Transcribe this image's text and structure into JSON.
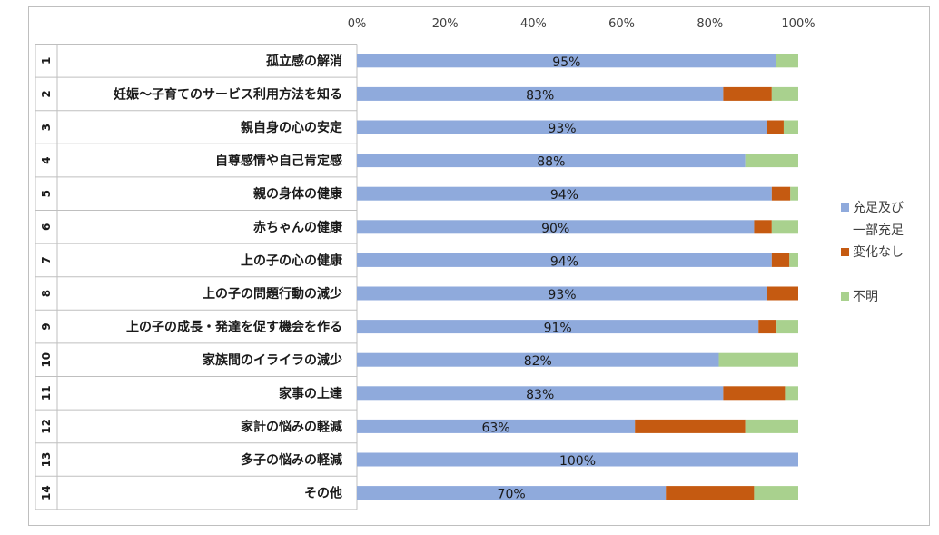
{
  "chart_data": {
    "type": "bar",
    "orientation": "horizontal",
    "stacked": true,
    "title": "",
    "xlabel": "",
    "ylabel": "",
    "xlim": [
      0,
      100
    ],
    "x_ticks": [
      "0%",
      "20%",
      "40%",
      "60%",
      "80%",
      "100%"
    ],
    "grid": false,
    "legend_position": "right",
    "row_numbers": [
      "1",
      "2",
      "3",
      "4",
      "5",
      "6",
      "7",
      "8",
      "9",
      "10",
      "11",
      "12",
      "13",
      "14"
    ],
    "categories": [
      "孤立感の解消",
      "妊娠～子育てのサービス利用方法を知る",
      "親自身の心の安定",
      "自尊感情や自己肯定感",
      "親の身体の健康",
      "赤ちゃんの健康",
      "上の子の心の健康",
      "上の子の問題行動の減少",
      "上の子の成長・発達を促す機会を作る",
      "家族間のイライラの減少",
      "家事の上達",
      "家計の悩みの軽減",
      "多子の悩みの軽減",
      "その他"
    ],
    "series": [
      {
        "name": "充足及び一部充足",
        "color": "#8faadc",
        "values": [
          95,
          83,
          93,
          88,
          94,
          90,
          94,
          93,
          91,
          82,
          83,
          63,
          100,
          70
        ],
        "labels": [
          "95%",
          "83%",
          "93%",
          "88%",
          "94%",
          "90%",
          "94%",
          "93%",
          "91%",
          "82%",
          "83%",
          "63%",
          "100%",
          "70%"
        ]
      },
      {
        "name": "変化なし",
        "color": "#c55a11",
        "values": [
          0,
          11,
          3.7,
          0,
          4.2,
          4,
          4,
          7,
          4.1,
          0,
          14,
          25,
          0,
          20
        ]
      },
      {
        "name": "不明",
        "color": "#a9d18e",
        "values": [
          5,
          6,
          3.3,
          12,
          1.8,
          6,
          2,
          0,
          4.9,
          18,
          3,
          12,
          0,
          10
        ]
      }
    ],
    "legend": {
      "entries": [
        {
          "lines": [
            "充足及び",
            "一部充足"
          ],
          "color": "#8faadc"
        },
        {
          "lines": [
            "変化なし"
          ],
          "color": "#c55a11"
        },
        {
          "lines": [
            "不明"
          ],
          "color": "#a9d18e"
        }
      ]
    }
  }
}
